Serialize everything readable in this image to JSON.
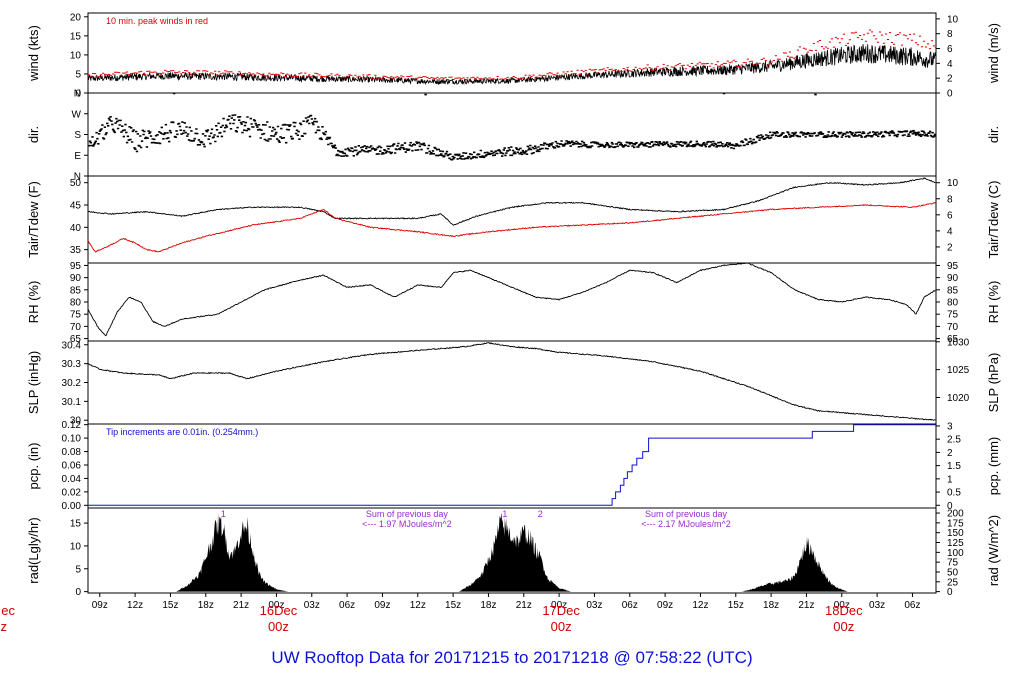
{
  "page": {
    "title": "UW Rooftop Data for 20171215  to  20171218 @ 07:58:22  (UTC)"
  },
  "colors": {
    "axes": "#000000",
    "peak_wind": "#e00000",
    "dewpoint": "#e00000",
    "precip": "#1010cc",
    "radiation_fill": "#000000",
    "annotation_purple": "#9a2ad0",
    "date_labels": "#d00000",
    "title": "#0b12d6"
  },
  "time_axis": {
    "range_hours": [
      0,
      72
    ],
    "ticks": [
      {
        "h": 1,
        "label": "09z"
      },
      {
        "h": 4,
        "label": "12z"
      },
      {
        "h": 7,
        "label": "15z"
      },
      {
        "h": 10,
        "label": "18z"
      },
      {
        "h": 13,
        "label": "21z"
      },
      {
        "h": 16,
        "label": "00z"
      },
      {
        "h": 19,
        "label": "03z"
      },
      {
        "h": 22,
        "label": "06z"
      },
      {
        "h": 25,
        "label": "09z"
      },
      {
        "h": 28,
        "label": "12z"
      },
      {
        "h": 31,
        "label": "15z"
      },
      {
        "h": 34,
        "label": "18z"
      },
      {
        "h": 37,
        "label": "21z"
      },
      {
        "h": 40,
        "label": "00z"
      },
      {
        "h": 43,
        "label": "03z"
      },
      {
        "h": 46,
        "label": "06z"
      },
      {
        "h": 49,
        "label": "09z"
      },
      {
        "h": 52,
        "label": "12z"
      },
      {
        "h": 55,
        "label": "15z"
      },
      {
        "h": 58,
        "label": "18z"
      },
      {
        "h": 61,
        "label": "21z"
      },
      {
        "h": 64,
        "label": "00z"
      },
      {
        "h": 67,
        "label": "03z"
      },
      {
        "h": 70,
        "label": "06z"
      }
    ],
    "day_labels": [
      {
        "h": 16,
        "day": "16Dec",
        "hour": "00z"
      },
      {
        "h": 40,
        "day": "17Dec",
        "hour": "00z"
      },
      {
        "h": 64,
        "day": "18Dec",
        "hour": "00z"
      }
    ],
    "left_cut_label": {
      "day": "ec",
      "hour": "z"
    }
  },
  "chart_data": [
    {
      "type": "line",
      "id": "wind",
      "ylabel": "wind (kts)",
      "ylabel_right": "wind (m/s)",
      "ylim": [
        0,
        21
      ],
      "yticks": [
        0,
        5,
        10,
        15,
        20
      ],
      "yticks_right": [
        0,
        2,
        4,
        6,
        8,
        10
      ],
      "right_scale": 0.514,
      "annotation": "10 min. peak winds in red",
      "series": [
        {
          "role": "mean",
          "style": "noisy",
          "x": [
            0,
            6,
            12,
            18,
            24,
            30,
            36,
            42,
            48,
            54,
            58,
            62,
            66,
            70,
            72
          ],
          "y": [
            3.8,
            4.5,
            4.3,
            3.9,
            3.5,
            3.0,
            3.2,
            4.5,
            5.5,
            6.0,
            7.0,
            9.0,
            10.5,
            9.5,
            8.5
          ],
          "amp": [
            0.9,
            1.0,
            1.0,
            0.9,
            0.8,
            0.7,
            0.7,
            0.9,
            1.2,
            1.4,
            1.6,
            2.2,
            2.6,
            2.5,
            2.2
          ]
        },
        {
          "role": "peak",
          "style": "dashes",
          "x": [
            0,
            6,
            12,
            18,
            24,
            30,
            36,
            42,
            48,
            54,
            58,
            62,
            66,
            70,
            72
          ],
          "y": [
            4.6,
            5.5,
            5.2,
            4.7,
            4.3,
            3.8,
            4.0,
            5.5,
            6.7,
            7.5,
            8.5,
            12.5,
            15.0,
            14.0,
            12.0
          ]
        }
      ]
    },
    {
      "type": "scatter",
      "id": "dir",
      "ylabel": "dir.",
      "ylabel_right": "dir.",
      "ylim": [
        0,
        360
      ],
      "ytick_positions": [
        0,
        90,
        180,
        270,
        360
      ],
      "ytick_labels": [
        "N",
        "E",
        "S",
        "W",
        "N"
      ],
      "series": [
        {
          "style": "dir-dashes",
          "x": [
            0,
            2,
            4,
            6,
            8,
            10,
            12,
            14,
            16,
            18,
            19,
            21,
            24,
            28,
            31,
            34,
            37,
            40,
            43,
            46,
            52,
            55,
            56,
            58,
            62,
            66,
            70,
            72
          ],
          "y": [
            130,
            230,
            150,
            180,
            200,
            160,
            230,
            210,
            180,
            200,
            230,
            110,
            110,
            130,
            80,
            100,
            110,
            140,
            135,
            135,
            140,
            130,
            150,
            180,
            180,
            180,
            185,
            180
          ],
          "spread": [
            30,
            40,
            45,
            45,
            45,
            45,
            40,
            45,
            45,
            40,
            40,
            25,
            20,
            22,
            15,
            18,
            20,
            15,
            12,
            12,
            12,
            15,
            18,
            12,
            12,
            12,
            12,
            12
          ]
        }
      ]
    },
    {
      "type": "line",
      "id": "temp",
      "ylabel": "Tair/Tdew (F)",
      "ylabel_right": "Tair/Tdew (C)",
      "ylim": [
        32,
        51.5
      ],
      "yticks": [
        35,
        40,
        45,
        50
      ],
      "yticks_right": [
        2,
        4,
        6,
        8,
        10
      ],
      "right_scale": "F_to_C",
      "series": [
        {
          "name": "Tair",
          "color": "#000000",
          "x": [
            0,
            2,
            5,
            8,
            11,
            14,
            18,
            20,
            21,
            24,
            28,
            30,
            31,
            33,
            36,
            39,
            42,
            46,
            50,
            54,
            57,
            60,
            63,
            66,
            69,
            71,
            72
          ],
          "y": [
            43.5,
            43,
            43.5,
            42.5,
            44,
            44.5,
            44.5,
            43.5,
            42,
            42,
            42,
            43,
            40.5,
            42.5,
            44.5,
            45.5,
            45.5,
            44,
            43.5,
            44,
            46,
            49,
            50,
            49.5,
            50,
            51,
            50
          ]
        },
        {
          "name": "Tdew",
          "color": "#e00000",
          "x": [
            0,
            0.6,
            1.5,
            3,
            4,
            5,
            6,
            8,
            10,
            14,
            18,
            20,
            21,
            24,
            28,
            31,
            34,
            38,
            42,
            46,
            50,
            54,
            58,
            62,
            66,
            70,
            72
          ],
          "y": [
            37,
            34.5,
            35.5,
            37.5,
            36.5,
            35,
            34.5,
            36.5,
            38,
            40.5,
            42,
            44,
            42,
            40,
            39,
            38,
            39,
            40,
            40.5,
            41,
            42,
            43,
            44,
            44.5,
            45,
            44.5,
            45.5
          ]
        }
      ]
    },
    {
      "type": "line",
      "id": "rh",
      "ylabel": "RH (%)",
      "ylabel_right": "RH (%)",
      "ylim": [
        64,
        96
      ],
      "yticks": [
        65,
        70,
        75,
        80,
        85,
        90,
        95
      ],
      "yticks_right": [
        65,
        70,
        75,
        80,
        85,
        90,
        95
      ],
      "series": [
        {
          "name": "RH",
          "color": "#000000",
          "x": [
            0,
            0.8,
            1.5,
            2.5,
            3.5,
            4.5,
            5.5,
            6.5,
            8,
            11,
            13,
            15,
            18,
            20,
            22,
            24,
            26,
            28,
            30,
            31,
            32.5,
            34,
            36,
            38,
            40,
            42,
            44,
            46,
            48,
            50,
            52,
            54,
            56,
            58,
            60,
            62,
            64,
            66,
            68,
            69.5,
            70.3,
            71,
            72
          ],
          "y": [
            77,
            70,
            66,
            76,
            82,
            80,
            72,
            70,
            73,
            75,
            80,
            85,
            89,
            91,
            86,
            87,
            82,
            87,
            86,
            92,
            93,
            90,
            86,
            82,
            81,
            84,
            88,
            93,
            92,
            88,
            93,
            95,
            96,
            92,
            85,
            81,
            80,
            82,
            81,
            79,
            75,
            82,
            85
          ]
        }
      ]
    },
    {
      "type": "line",
      "id": "slp",
      "ylabel": "SLP (inHg)",
      "ylabel_right": "SLP (hPa)",
      "ylim": [
        29.98,
        30.42
      ],
      "yticks": [
        30.0,
        30.1,
        30.2,
        30.3,
        30.4
      ],
      "yticks_right": [
        1020,
        1025,
        1030
      ],
      "right_scale": "inHg_to_hPa",
      "series": [
        {
          "name": "SLP",
          "color": "#000000",
          "x": [
            0,
            1,
            3,
            6,
            7,
            9,
            12,
            13.5,
            16,
            20,
            24,
            28,
            30,
            32,
            34,
            36,
            38,
            40,
            44,
            48,
            52,
            56,
            58,
            60,
            62,
            64,
            66,
            68,
            70,
            72
          ],
          "y": [
            30.3,
            30.27,
            30.25,
            30.24,
            30.22,
            30.25,
            30.25,
            30.22,
            30.26,
            30.31,
            30.35,
            30.37,
            30.38,
            30.39,
            30.41,
            30.39,
            30.38,
            30.36,
            30.34,
            30.31,
            30.26,
            30.18,
            30.13,
            30.08,
            30.05,
            30.04,
            30.03,
            30.02,
            30.01,
            30.0
          ]
        }
      ]
    },
    {
      "type": "line",
      "id": "pcp",
      "ylabel": "pcp. (in)",
      "ylabel_right": "pcp. (mm)",
      "ylim": [
        -0.004,
        0.121
      ],
      "yticks": [
        0.0,
        0.02,
        0.04,
        0.06,
        0.08,
        0.1,
        0.12
      ],
      "ytick_labels": [
        "0.00",
        "0.02",
        "0.04",
        "0.06",
        "0.08",
        "0.10",
        "0.12"
      ],
      "yticks_right": [
        0,
        0.5,
        1,
        1.5,
        2,
        2.5,
        3
      ],
      "right_scale": 25.4,
      "annotation": "Tip increments are 0.01in. (0.254mm.)",
      "series": [
        {
          "name": "Accumulated precip",
          "color": "#1010cc",
          "step": true,
          "x": [
            0,
            44.5,
            44.8,
            45.2,
            45.5,
            45.8,
            46.2,
            46.6,
            47.1,
            47.6,
            61.5,
            65,
            72
          ],
          "y": [
            0,
            0.01,
            0.02,
            0.03,
            0.04,
            0.05,
            0.06,
            0.07,
            0.08,
            0.1,
            0.11,
            0.12,
            0.12
          ]
        }
      ]
    },
    {
      "type": "area",
      "id": "rad",
      "ylabel": "rad(Lgly/hr)",
      "ylabel_right": "rad (W/m^2)",
      "ylim": [
        -0.3,
        18.3
      ],
      "yticks": [
        0,
        5,
        10,
        15
      ],
      "yticks_right": [
        0,
        25,
        50,
        75,
        100,
        125,
        150,
        175,
        200
      ],
      "right_scale": 11.63,
      "annotations": [
        {
          "h": 11.5,
          "text": "1"
        },
        {
          "h": 35.4,
          "text": "1"
        },
        {
          "h": 38.4,
          "text": "2"
        },
        {
          "h": 27.5,
          "text": "Sum of previous day"
        },
        {
          "h": 27.5,
          "text": "<--- 1.97 MJoules/m^2"
        },
        {
          "h": 51.2,
          "text": "Sum of previous day"
        },
        {
          "h": 51.2,
          "text": "<--- 2.17 MJoules/m^2"
        }
      ],
      "series": [
        {
          "name": "Solar radiation",
          "style": "filled",
          "x": [
            7.5,
            8.5,
            9.5,
            10.5,
            11,
            11.5,
            12,
            12.5,
            13,
            13.5,
            14,
            14.5,
            15,
            16,
            17,
            31.5,
            32.5,
            33.5,
            34.5,
            35,
            35.5,
            36,
            36.5,
            37,
            37.5,
            38,
            38.5,
            39,
            40,
            41,
            55.5,
            56.5,
            57.5,
            58.5,
            59.5,
            60,
            60.5,
            61,
            61.5,
            62,
            62.5,
            63,
            63.5,
            64.5
          ],
          "y": [
            0,
            1.5,
            4,
            11,
            15,
            14,
            8,
            9,
            13,
            14.5,
            9,
            4,
            2,
            0.5,
            0,
            0,
            1.5,
            4,
            10,
            15,
            14,
            12,
            11,
            13,
            12,
            9,
            7,
            3,
            0.8,
            0,
            0,
            0.6,
            1.5,
            2,
            2.5,
            3.5,
            7,
            10.5,
            9,
            6,
            4,
            2,
            1,
            0
          ]
        }
      ]
    }
  ]
}
